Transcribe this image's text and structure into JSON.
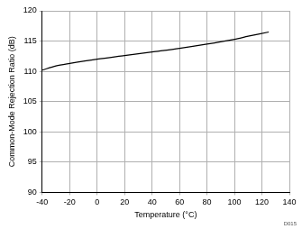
{
  "chart_data": {
    "type": "line",
    "x_label": "Temperature (°C)",
    "y_label": "Common-Mode Rejection Ratio (dB)",
    "annotation": "D015",
    "x": [
      -40,
      -30,
      -20,
      0,
      20,
      40,
      60,
      80,
      100,
      110,
      125
    ],
    "values": [
      110.2,
      110.9,
      111.3,
      112.0,
      112.6,
      113.2,
      113.8,
      114.5,
      115.3,
      115.8,
      116.5
    ],
    "color": "#000000",
    "xlim": [
      -40,
      140
    ],
    "xticks": [
      -40,
      -20,
      0,
      20,
      40,
      60,
      80,
      100,
      120,
      140
    ],
    "ylim": [
      90,
      120
    ],
    "yticks": [
      90,
      95,
      100,
      105,
      110,
      115,
      120
    ],
    "grid": true
  }
}
